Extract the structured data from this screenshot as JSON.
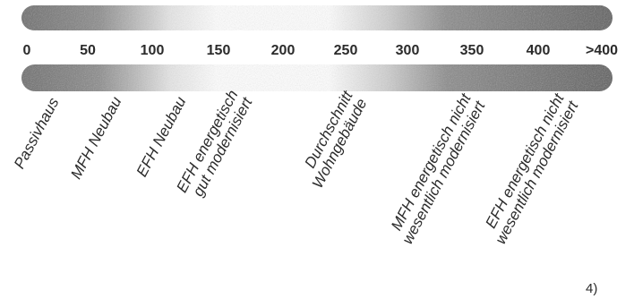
{
  "scale": {
    "ticks": [
      "0",
      "50",
      "100",
      "150",
      "200",
      "250",
      "300",
      "350",
      "400",
      ">400"
    ],
    "unit": ""
  },
  "categories": [
    {
      "lines": [
        "Passivhaus"
      ]
    },
    {
      "lines": [
        "MFH Neubau"
      ]
    },
    {
      "lines": [
        "EFH Neubau"
      ]
    },
    {
      "lines": [
        "EFH energetisch",
        "gut modernisiert"
      ]
    },
    {
      "lines": [
        "Durchschnitt",
        "Wohngebäude"
      ]
    },
    {
      "lines": [
        "MFH energetisch nicht",
        "wesentlich modernisiert"
      ]
    },
    {
      "lines": [
        "EFH energetisch nicht",
        "wesentlich modernisiert"
      ]
    }
  ],
  "footnote": "4)",
  "colors": {
    "band_dark": "#5e5e5e",
    "band_light": "#ffffff",
    "text": "#2b2b2b"
  }
}
